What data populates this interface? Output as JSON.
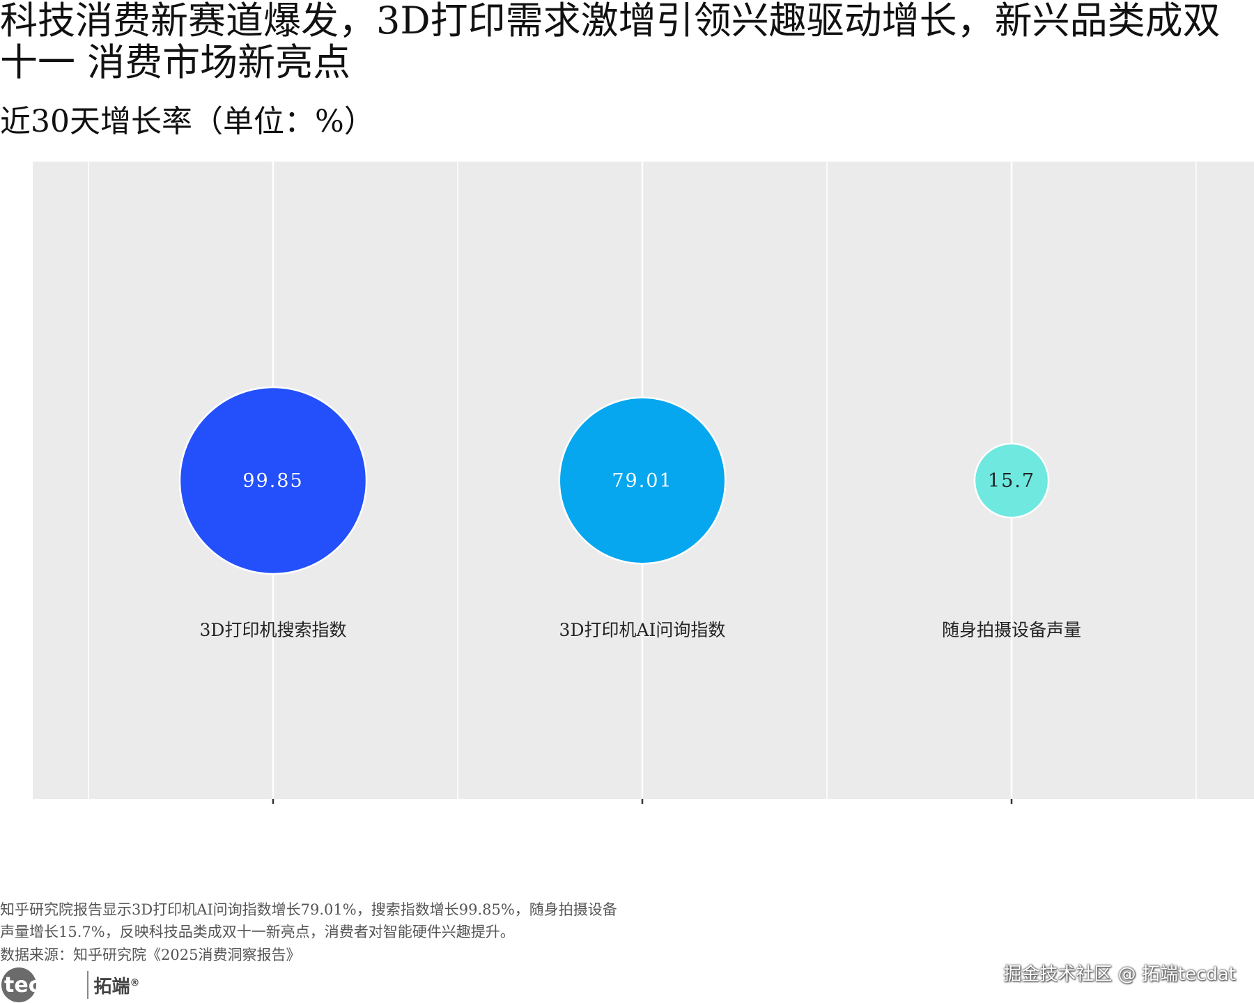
{
  "header": {
    "title": "科技消费新赛道爆发，3D打印需求激增引领兴趣驱动增长，新兴品类成双十一 消费市场新亮点",
    "subtitle": "近30天增长率（单位：%）"
  },
  "footer": {
    "caption": "知乎研究院报告显示3D打印机AI问询指数增长79.01%，搜索指数增长99.85%，随身拍摄设备声量增长15.7%，反映科技品类成双十一新亮点，消费者对智能硬件兴趣提升。",
    "source": "数据来源：知乎研究院《2025消费洞察报告》",
    "brand_logo": "tecdat",
    "brand_cn": "拓端",
    "brand_reg": "®",
    "watermark": "掘金技术社区 @ 拓端tecdat"
  },
  "chart_data": {
    "type": "scatter",
    "subtype": "bubble",
    "title": "科技消费新赛道爆发，3D打印需求激增引领兴趣驱动增长，新兴品类成双十一 消费市场新亮点",
    "subtitle": "近30天增长率（单位：%）",
    "categories": [
      "3D打印机搜索指数",
      "3D打印机AI问询指数",
      "随身拍摄设备声量"
    ],
    "values": [
      99.85,
      79.01,
      15.7
    ],
    "value_labels": [
      "99.85",
      "79.01",
      "15.7"
    ],
    "colors": [
      "#2350fb",
      "#06a7ef",
      "#6fe8e0"
    ],
    "label_colors": [
      "#ffffff",
      "#ffffff",
      "#222222"
    ],
    "panel_color": "#ebebeb",
    "grid": true,
    "legend": "none"
  }
}
